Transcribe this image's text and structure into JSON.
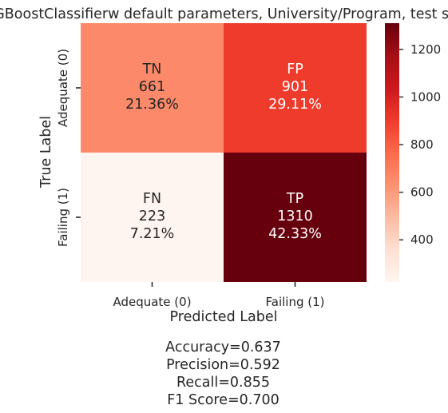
{
  "chart_data": {
    "type": "heatmap",
    "title": "XGBoostClassifierw default parameters, University/Program, test set",
    "xlabel": "Predicted Label",
    "ylabel": "True Label",
    "x_categories": [
      "Adequate (0)",
      "Failing (1)"
    ],
    "y_categories": [
      "Adequate (0)",
      "Failing (1)"
    ],
    "cells": [
      [
        {
          "label": "TN",
          "count": "661",
          "percent": "21.36%",
          "value": 661
        },
        {
          "label": "FP",
          "count": "901",
          "percent": "29.11%",
          "value": 901
        }
      ],
      [
        {
          "label": "FN",
          "count": "223",
          "percent": "7.21%",
          "value": 223
        },
        {
          "label": "TP",
          "count": "1310",
          "percent": "42.33%",
          "value": 1310
        }
      ]
    ],
    "colorbar": {
      "colormap": "Reds",
      "vmin": 223,
      "vmax": 1310,
      "ticks": [
        400,
        600,
        800,
        1000,
        1200
      ],
      "tick_labels": [
        "400",
        "600",
        "800",
        "1000",
        "1200"
      ]
    },
    "grid": false,
    "legend": "none"
  },
  "metrics": {
    "accuracy": "Accuracy=0.637",
    "precision": "Precision=0.592",
    "recall": "Recall=0.855",
    "f1": "F1 Score=0.700"
  }
}
